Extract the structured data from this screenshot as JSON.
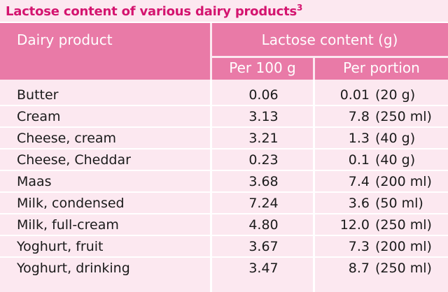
{
  "title": "Lactose content of various dairy products",
  "title_superscript": "3",
  "headers": {
    "product": "Dairy product",
    "lactose": "Lactose content (g)",
    "per100": "Per 100 g",
    "perportion": "Per portion"
  },
  "rows": [
    {
      "product": "Butter",
      "per100": "0.06",
      "amount": "0.01",
      "portion": "(20 g)"
    },
    {
      "product": "Cream",
      "per100": "3.13",
      "amount": "7.8",
      "portion": "(250 ml)"
    },
    {
      "product": "Cheese, cream",
      "per100": "3.21",
      "amount": "1.3",
      "portion": "(40 g)"
    },
    {
      "product": "Cheese, Cheddar",
      "per100": "0.23",
      "amount": "0.1",
      "portion": "(40 g)"
    },
    {
      "product": "Maas",
      "per100": "3.68",
      "amount": "7.4",
      "portion": "(200 ml)"
    },
    {
      "product": "Milk, condensed",
      "per100": "7.24",
      "amount": "3.6",
      "portion": "(50 ml)"
    },
    {
      "product": "Milk, full-cream",
      "per100": "4.80",
      "amount": "12.0",
      "portion": "(250 ml)"
    },
    {
      "product": "Yoghurt, fruit",
      "per100": "3.67",
      "amount": "7.3",
      "portion": "(200 ml)"
    },
    {
      "product": "Yoghurt, drinking",
      "per100": "3.47",
      "amount": "8.7",
      "portion": "(250 ml)"
    }
  ],
  "colors": {
    "title": "#d4146f",
    "header_bg": "#e97aa7",
    "body_bg": "#fce8f0",
    "divider": "#ffffff"
  }
}
